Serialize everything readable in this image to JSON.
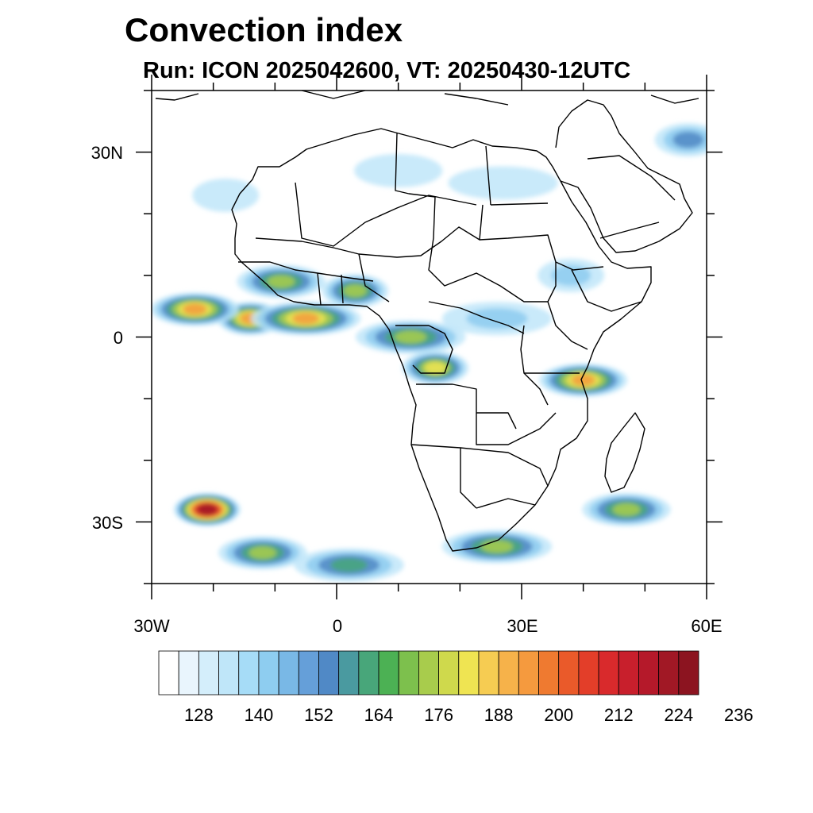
{
  "title": "Convection index",
  "subtitle": "Run: ICON 2025042600,  VT: 20250430-12UTC",
  "axes": {
    "lat_ticks": [
      {
        "value": 30,
        "label": "30N"
      },
      {
        "value": 0,
        "label": "0"
      },
      {
        "value": -30,
        "label": "30S"
      }
    ],
    "lon_ticks": [
      {
        "value": -30,
        "label": "30W"
      },
      {
        "value": 0,
        "label": "0"
      },
      {
        "value": 30,
        "label": "30E"
      },
      {
        "value": 60,
        "label": "60E"
      }
    ],
    "lon_range": [
      -30,
      60
    ],
    "lat_range": [
      -40,
      40
    ]
  },
  "colorbar": {
    "colors": [
      "#ffffff",
      "#e9f5fd",
      "#d4eefb",
      "#bfe6f9",
      "#a6dcf7",
      "#8ecdf0",
      "#79b8e6",
      "#659fd9",
      "#5089c6",
      "#4a9aa0",
      "#48a67a",
      "#4cb154",
      "#7dc04d",
      "#a8cc4c",
      "#cfd94c",
      "#efe452",
      "#f6cc52",
      "#f6b24a",
      "#f59a3e",
      "#ef7a30",
      "#ea5a2a",
      "#e33e29",
      "#d92a2c",
      "#c81f2c",
      "#b5192a",
      "#a11825",
      "#8c1420"
    ],
    "labels": [
      "128",
      "140",
      "152",
      "164",
      "176",
      "188",
      "200",
      "212",
      "224",
      "236"
    ]
  },
  "chart_data": {
    "type": "heatmap",
    "title": "Convection index",
    "subtitle": "Run: ICON 2025042600,  VT: 20250430-12UTC",
    "variable_range": [
      122,
      242
    ],
    "level_step": 4,
    "lon_range": [
      -30,
      60
    ],
    "lat_range": [
      -40,
      40
    ],
    "regions": [
      {
        "lon": -14,
        "lat": 3,
        "peak": 200
      },
      {
        "lon": -23,
        "lat": 4.5,
        "peak": 196
      },
      {
        "lon": -5,
        "lat": 3,
        "peak": 200
      },
      {
        "lon": 3,
        "lat": 7.5,
        "peak": 180
      },
      {
        "lon": -9,
        "lat": 9,
        "peak": 176
      },
      {
        "lon": 12,
        "lat": 0,
        "peak": 180
      },
      {
        "lon": 16,
        "lat": -5,
        "peak": 188
      },
      {
        "lon": 40,
        "lat": -7,
        "peak": 200
      },
      {
        "lon": 26,
        "lat": 3,
        "peak": 150
      },
      {
        "lon": 38,
        "lat": 10,
        "peak": 146
      },
      {
        "lon": 47,
        "lat": -28,
        "peak": 176
      },
      {
        "lon": 26,
        "lat": -34,
        "peak": 176
      },
      {
        "lon": -21,
        "lat": -28,
        "peak": 226
      },
      {
        "lon": -12,
        "lat": -35,
        "peak": 176
      },
      {
        "lon": 2,
        "lat": -37,
        "peak": 164
      },
      {
        "lon": -18,
        "lat": 23,
        "peak": 140
      },
      {
        "lon": 10,
        "lat": 27,
        "peak": 140
      },
      {
        "lon": 27,
        "lat": 25,
        "peak": 140
      },
      {
        "lon": 57,
        "lat": 32,
        "peak": 160
      }
    ]
  }
}
